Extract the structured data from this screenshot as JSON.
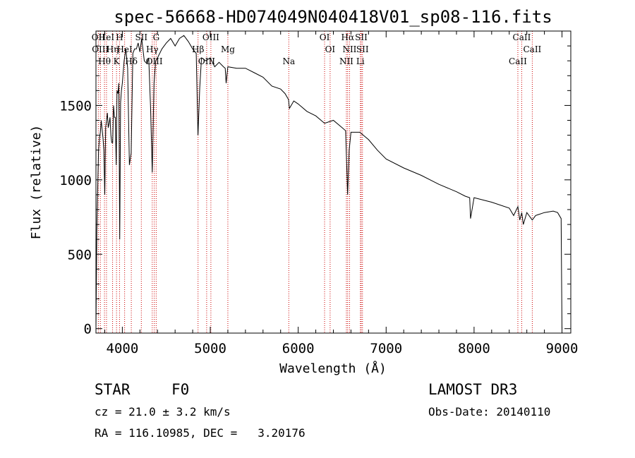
{
  "chart_data": {
    "type": "line",
    "title": "spec-56668-HD074049N040418V01_sp08-116.fits",
    "xlabel": "Wavelength (Å)",
    "ylabel": "Flux (relative)",
    "xlim": [
      3700,
      9100
    ],
    "ylim": [
      -30,
      2000
    ],
    "xticks": [
      4000,
      5000,
      6000,
      7000,
      8000,
      9000
    ],
    "yticks": [
      0,
      500,
      1000,
      1500
    ],
    "series": [
      {
        "name": "flux",
        "x": [
          3700,
          3710,
          3720,
          3730,
          3740,
          3750,
          3760,
          3770,
          3780,
          3790,
          3800,
          3810,
          3820,
          3830,
          3840,
          3850,
          3860,
          3870,
          3880,
          3890,
          3900,
          3910,
          3920,
          3930,
          3940,
          3950,
          3960,
          3970,
          3980,
          3990,
          4000,
          4020,
          4040,
          4060,
          4080,
          4100,
          4120,
          4140,
          4160,
          4180,
          4200,
          4220,
          4250,
          4280,
          4300,
          4320,
          4340,
          4360,
          4380,
          4400,
          4450,
          4500,
          4550,
          4600,
          4650,
          4700,
          4750,
          4800,
          4840,
          4860,
          4880,
          4900,
          4950,
          5000,
          5050,
          5100,
          5150,
          5170,
          5180,
          5200,
          5300,
          5400,
          5500,
          5600,
          5700,
          5800,
          5850,
          5890,
          5900,
          5950,
          6000,
          6100,
          6200,
          6300,
          6400,
          6500,
          6540,
          6562,
          6580,
          6600,
          6700,
          6800,
          6900,
          7000,
          7200,
          7400,
          7600,
          7800,
          7900,
          7950,
          7960,
          8000,
          8200,
          8400,
          8450,
          8498,
          8520,
          8542,
          8560,
          8600,
          8662,
          8700,
          8800,
          8900,
          8950,
          8990,
          9000
        ],
        "y": [
          0,
          650,
          950,
          1200,
          1280,
          1320,
          1400,
          1340,
          1280,
          1200,
          900,
          1350,
          1400,
          1450,
          1350,
          1380,
          1420,
          1300,
          1250,
          1250,
          1500,
          1420,
          1420,
          1100,
          1600,
          1580,
          1650,
          600,
          1520,
          1600,
          1650,
          1800,
          1880,
          1750,
          1100,
          1180,
          1850,
          1880,
          1880,
          1920,
          1860,
          1950,
          1800,
          1780,
          1820,
          1500,
          1050,
          1650,
          1800,
          1820,
          1880,
          1920,
          1950,
          1900,
          1950,
          1970,
          1930,
          1880,
          1850,
          1300,
          1620,
          1820,
          1800,
          1820,
          1760,
          1790,
          1760,
          1750,
          1650,
          1760,
          1750,
          1750,
          1720,
          1690,
          1630,
          1610,
          1580,
          1540,
          1480,
          1530,
          1510,
          1460,
          1430,
          1380,
          1400,
          1350,
          1330,
          900,
          1200,
          1320,
          1320,
          1270,
          1200,
          1140,
          1080,
          1030,
          970,
          920,
          890,
          880,
          740,
          880,
          850,
          810,
          760,
          820,
          730,
          780,
          700,
          780,
          730,
          760,
          780,
          790,
          780,
          740,
          0
        ]
      }
    ],
    "line_markers": [
      {
        "wl": 3727,
        "label": "OII"
      },
      {
        "wl": 3750,
        "label": "OIII"
      },
      {
        "wl": 3797,
        "label": "Hθ"
      },
      {
        "wl": 3820,
        "label": "HeI"
      },
      {
        "wl": 3889,
        "label": "Hη"
      },
      {
        "wl": 3934,
        "label": "K"
      },
      {
        "wl": 3968,
        "label": "H"
      },
      {
        "wl": 4026,
        "label": "HeI"
      },
      {
        "wl": 4102,
        "label": "Hδ"
      },
      {
        "wl": 4216,
        "label": "SII"
      },
      {
        "wl": 4340,
        "label": "Hγ"
      },
      {
        "wl": 4363,
        "label": "OIII"
      },
      {
        "wl": 4385,
        "label": "G"
      },
      {
        "wl": 4861,
        "label": "Hβ"
      },
      {
        "wl": 4959,
        "label": "OIII"
      },
      {
        "wl": 5007,
        "label": "OIII"
      },
      {
        "wl": 5200,
        "label": "Mg"
      },
      {
        "wl": 5893,
        "label": "Na"
      },
      {
        "wl": 6300,
        "label": "OI"
      },
      {
        "wl": 6363,
        "label": "OI"
      },
      {
        "wl": 6548,
        "label": "NII"
      },
      {
        "wl": 6563,
        "label": "Hα"
      },
      {
        "wl": 6584,
        "label": "NII"
      },
      {
        "wl": 6707,
        "label": "Li"
      },
      {
        "wl": 6717,
        "label": "SII"
      },
      {
        "wl": 6731,
        "label": "SII"
      },
      {
        "wl": 8498,
        "label": "CaII"
      },
      {
        "wl": 8542,
        "label": "CaII"
      },
      {
        "wl": 8662,
        "label": "CaII"
      }
    ]
  },
  "info": {
    "class_label": "STAR",
    "subclass": "F0",
    "survey": "LAMOST DR3",
    "redshift": "cz = 21.0 ± 3.2 km/s",
    "obs_date": "Obs-Date: 20140110",
    "coords": "RA = 116.10985, DEC =   3.20176"
  }
}
